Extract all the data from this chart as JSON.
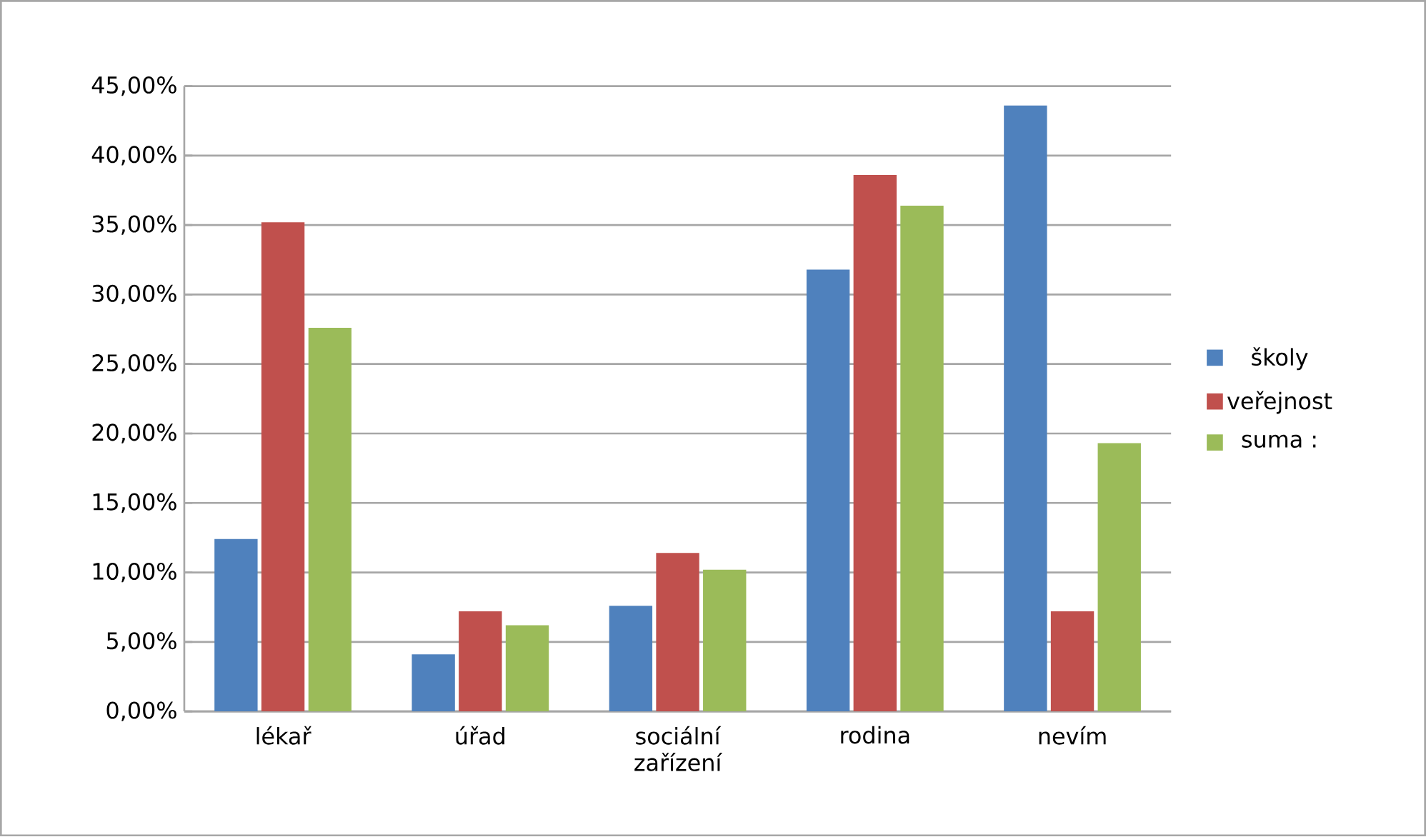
{
  "chart_data": {
    "type": "bar",
    "categories": [
      "lékař",
      "úřad",
      "sociální zařízení",
      "rodina",
      "nevím"
    ],
    "series": [
      {
        "name": "školy",
        "color": "#4f81bd",
        "values": [
          12.4,
          4.1,
          7.6,
          31.8,
          43.6
        ]
      },
      {
        "name": "veřejnost",
        "color": "#c0504d",
        "values": [
          35.2,
          7.2,
          11.4,
          38.6,
          7.2
        ]
      },
      {
        "name": "suma :",
        "color": "#9bbb59",
        "values": [
          27.6,
          6.2,
          10.2,
          36.4,
          19.3
        ]
      }
    ],
    "ylim": [
      0,
      45
    ],
    "yticks": [
      {
        "value": 0,
        "label": "0,00%"
      },
      {
        "value": 5,
        "label": "5,00%"
      },
      {
        "value": 10,
        "label": "10,00%"
      },
      {
        "value": 15,
        "label": "15,00%"
      },
      {
        "value": 20,
        "label": "20,00%"
      },
      {
        "value": 25,
        "label": "25,00%"
      },
      {
        "value": 30,
        "label": "30,00%"
      },
      {
        "value": 35,
        "label": "35,00%"
      },
      {
        "value": 40,
        "label": "40,00%"
      },
      {
        "value": 45,
        "label": "45,00%"
      }
    ],
    "grid": "y",
    "legend": "right"
  }
}
